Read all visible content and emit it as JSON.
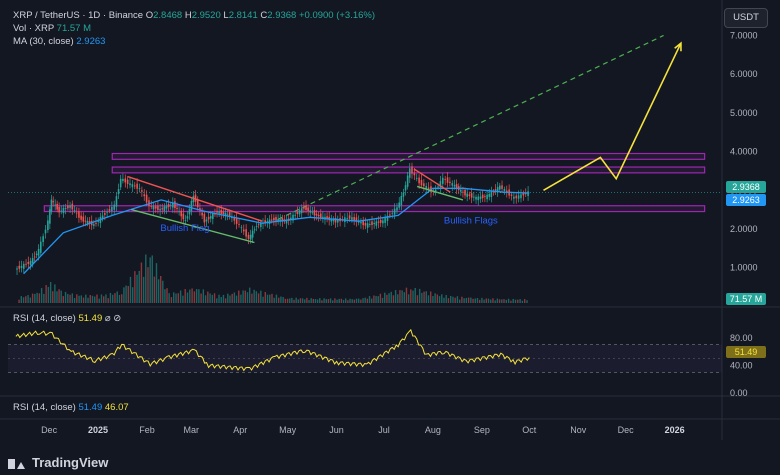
{
  "header": {
    "symbol": "XRP / TetherUS · 1D · Binance",
    "ohlc_label_o": "O",
    "open": "2.8468",
    "ohlc_label_h": "H",
    "high": "2.9520",
    "ohlc_label_l": "L",
    "low": "2.8141",
    "ohlc_label_c": "C",
    "close": "2.9368",
    "change": "+0.0900 (+3.16%)",
    "vol_label": "Vol · XRP",
    "vol_value": "71.57 M",
    "ma_label": "MA (30, close)",
    "ma_value": "2.9263",
    "currency": "USDT"
  },
  "rsi_panel": {
    "legend_label": "RSI (14, close)",
    "legend_value": "51.49",
    "legend_icons": "⌀ ⊘"
  },
  "rsi_panel_2": {
    "legend_label": "RSI (14, close)",
    "legend_value": "51.49",
    "legend_value_2": "46.07"
  },
  "price_tags": {
    "last_price": "2.9368",
    "ma_price": "2.9263",
    "volume": "71.57 M",
    "rsi": "51.49"
  },
  "annotations": {
    "flag_1": "Bullish Flag",
    "flag_2": "Bullish Flags"
  },
  "branding": {
    "name": "TradingView"
  },
  "colors": {
    "background": "#131722",
    "up": "#26a69a",
    "down": "#ef5350",
    "ma": "#2196f3",
    "rsi": "#f5e23b",
    "zone": "#9c27b0",
    "projection": "#f5e23b",
    "trend_dashed": "#4caf50",
    "flag_top": "#ef5350",
    "flag_bottom": "#66bb6a"
  },
  "chart_data": {
    "type": "candlestick",
    "title": "XRP / TetherUS · 1D · Binance",
    "xlabel": "",
    "ylabel": "",
    "x_ticks": [
      "Dec",
      "2025",
      "Feb",
      "Mar",
      "Apr",
      "May",
      "Jun",
      "Jul",
      "Aug",
      "Sep",
      "Oct",
      "Nov",
      "Dec",
      "2026"
    ],
    "y_ticks": [
      "1.0000",
      "2.0000",
      "3.0000",
      "4.0000",
      "5.0000",
      "6.0000",
      "7.0000"
    ],
    "ylim": [
      0.5,
      7.4
    ],
    "price_path": [
      {
        "d": "2024-11-10",
        "p": 0.95
      },
      {
        "d": "2024-11-20",
        "p": 1.15
      },
      {
        "d": "2024-11-25",
        "p": 1.45
      },
      {
        "d": "2024-12-01",
        "p": 2.2
      },
      {
        "d": "2024-12-03",
        "p": 2.75
      },
      {
        "d": "2024-12-08",
        "p": 2.45
      },
      {
        "d": "2024-12-15",
        "p": 2.6
      },
      {
        "d": "2024-12-22",
        "p": 2.25
      },
      {
        "d": "2024-12-30",
        "p": 2.1
      },
      {
        "d": "2025-01-06",
        "p": 2.4
      },
      {
        "d": "2025-01-12",
        "p": 2.6
      },
      {
        "d": "2025-01-16",
        "p": 3.3
      },
      {
        "d": "2025-01-22",
        "p": 3.15
      },
      {
        "d": "2025-01-28",
        "p": 3.05
      },
      {
        "d": "2025-02-03",
        "p": 2.6
      },
      {
        "d": "2025-02-10",
        "p": 2.5
      },
      {
        "d": "2025-02-18",
        "p": 2.65
      },
      {
        "d": "2025-02-26",
        "p": 2.2
      },
      {
        "d": "2025-03-03",
        "p": 2.85
      },
      {
        "d": "2025-03-10",
        "p": 2.2
      },
      {
        "d": "2025-03-18",
        "p": 2.45
      },
      {
        "d": "2025-03-26",
        "p": 2.35
      },
      {
        "d": "2025-04-01",
        "p": 2.1
      },
      {
        "d": "2025-04-07",
        "p": 1.75
      },
      {
        "d": "2025-04-12",
        "p": 2.1
      },
      {
        "d": "2025-04-23",
        "p": 2.25
      },
      {
        "d": "2025-05-01",
        "p": 2.2
      },
      {
        "d": "2025-05-12",
        "p": 2.55
      },
      {
        "d": "2025-05-20",
        "p": 2.35
      },
      {
        "d": "2025-06-01",
        "p": 2.2
      },
      {
        "d": "2025-06-10",
        "p": 2.3
      },
      {
        "d": "2025-06-20",
        "p": 2.1
      },
      {
        "d": "2025-07-01",
        "p": 2.2
      },
      {
        "d": "2025-07-10",
        "p": 2.55
      },
      {
        "d": "2025-07-14",
        "p": 2.95
      },
      {
        "d": "2025-07-18",
        "p": 3.55
      },
      {
        "d": "2025-07-24",
        "p": 3.2
      },
      {
        "d": "2025-08-02",
        "p": 2.95
      },
      {
        "d": "2025-08-08",
        "p": 3.3
      },
      {
        "d": "2025-08-14",
        "p": 3.15
      },
      {
        "d": "2025-08-22",
        "p": 2.9
      },
      {
        "d": "2025-08-29",
        "p": 2.8
      },
      {
        "d": "2025-09-05",
        "p": 2.85
      },
      {
        "d": "2025-09-13",
        "p": 3.1
      },
      {
        "d": "2025-09-22",
        "p": 2.8
      },
      {
        "d": "2025-10-01",
        "p": 2.94
      }
    ],
    "ma_30": [
      {
        "d": "2024-11-15",
        "p": 0.85
      },
      {
        "d": "2024-12-10",
        "p": 1.9
      },
      {
        "d": "2025-01-10",
        "p": 2.35
      },
      {
        "d": "2025-02-10",
        "p": 2.75
      },
      {
        "d": "2025-03-10",
        "p": 2.45
      },
      {
        "d": "2025-04-15",
        "p": 2.15
      },
      {
        "d": "2025-05-15",
        "p": 2.3
      },
      {
        "d": "2025-06-15",
        "p": 2.2
      },
      {
        "d": "2025-07-10",
        "p": 2.35
      },
      {
        "d": "2025-08-01",
        "p": 3.05
      },
      {
        "d": "2025-08-20",
        "p": 3.05
      },
      {
        "d": "2025-09-15",
        "p": 2.95
      },
      {
        "d": "2025-10-01",
        "p": 2.93
      }
    ],
    "volume": [
      {
        "d": "2024-11-12",
        "v": 0.12
      },
      {
        "d": "2024-11-22",
        "v": 0.18
      },
      {
        "d": "2024-12-02",
        "v": 0.4
      },
      {
        "d": "2024-12-10",
        "v": 0.22
      },
      {
        "d": "2024-12-20",
        "v": 0.15
      },
      {
        "d": "2025-01-06",
        "v": 0.16
      },
      {
        "d": "2025-01-16",
        "v": 0.25
      },
      {
        "d": "2025-02-03",
        "v": 1.0
      },
      {
        "d": "2025-02-15",
        "v": 0.18
      },
      {
        "d": "2025-03-03",
        "v": 0.3
      },
      {
        "d": "2025-03-20",
        "v": 0.14
      },
      {
        "d": "2025-04-07",
        "v": 0.28
      },
      {
        "d": "2025-05-01",
        "v": 0.1
      },
      {
        "d": "2025-05-20",
        "v": 0.09
      },
      {
        "d": "2025-06-15",
        "v": 0.08
      },
      {
        "d": "2025-07-18",
        "v": 0.3
      },
      {
        "d": "2025-08-08",
        "v": 0.15
      },
      {
        "d": "2025-08-25",
        "v": 0.1
      },
      {
        "d": "2025-09-15",
        "v": 0.08
      },
      {
        "d": "2025-10-01",
        "v": 0.07
      }
    ],
    "rsi": [
      {
        "d": "2024-11-10",
        "v": 82
      },
      {
        "d": "2024-11-25",
        "v": 88
      },
      {
        "d": "2024-12-03",
        "v": 85
      },
      {
        "d": "2024-12-15",
        "v": 60
      },
      {
        "d": "2024-12-30",
        "v": 47
      },
      {
        "d": "2025-01-10",
        "v": 55
      },
      {
        "d": "2025-01-16",
        "v": 70
      },
      {
        "d": "2025-02-03",
        "v": 42
      },
      {
        "d": "2025-02-15",
        "v": 52
      },
      {
        "d": "2025-03-03",
        "v": 62
      },
      {
        "d": "2025-03-12",
        "v": 40
      },
      {
        "d": "2025-04-07",
        "v": 35
      },
      {
        "d": "2025-04-23",
        "v": 52
      },
      {
        "d": "2025-05-12",
        "v": 62
      },
      {
        "d": "2025-06-01",
        "v": 44
      },
      {
        "d": "2025-06-20",
        "v": 41
      },
      {
        "d": "2025-07-10",
        "v": 70
      },
      {
        "d": "2025-07-18",
        "v": 90
      },
      {
        "d": "2025-07-28",
        "v": 55
      },
      {
        "d": "2025-08-08",
        "v": 60
      },
      {
        "d": "2025-08-22",
        "v": 46
      },
      {
        "d": "2025-09-13",
        "v": 56
      },
      {
        "d": "2025-09-22",
        "v": 45
      },
      {
        "d": "2025-10-01",
        "v": 51.49
      }
    ],
    "rsi_levels": [
      70,
      30
    ],
    "rsi_ticks": [
      "80.00",
      "40.00",
      "0.00"
    ],
    "resistance_zones": [
      [
        3.8,
        3.95
      ],
      [
        3.45,
        3.6
      ]
    ],
    "support_zone": [
      2.45,
      2.6
    ],
    "trendline_dashed": [
      {
        "d": "2025-04-25",
        "p": 2.25
      },
      {
        "d": "2025-12-25",
        "p": 7.0
      }
    ],
    "flag_1_top": [
      {
        "d": "2025-01-20",
        "p": 3.35
      },
      {
        "d": "2025-04-15",
        "p": 2.2
      }
    ],
    "flag_1_bottom": [
      {
        "d": "2025-01-22",
        "p": 2.5
      },
      {
        "d": "2025-04-10",
        "p": 1.65
      }
    ],
    "flag_2_top": [
      {
        "d": "2025-07-20",
        "p": 3.55
      },
      {
        "d": "2025-08-12",
        "p": 2.95
      }
    ],
    "flag_2_bottom": [
      {
        "d": "2025-07-22",
        "p": 3.1
      },
      {
        "d": "2025-08-20",
        "p": 2.75
      }
    ],
    "projection_path": [
      {
        "d": "2025-10-10",
        "p": 3.0
      },
      {
        "d": "2025-11-15",
        "p": 3.85
      },
      {
        "d": "2025-11-25",
        "p": 3.3
      },
      {
        "d": "2026-01-05",
        "p": 6.8
      }
    ]
  }
}
